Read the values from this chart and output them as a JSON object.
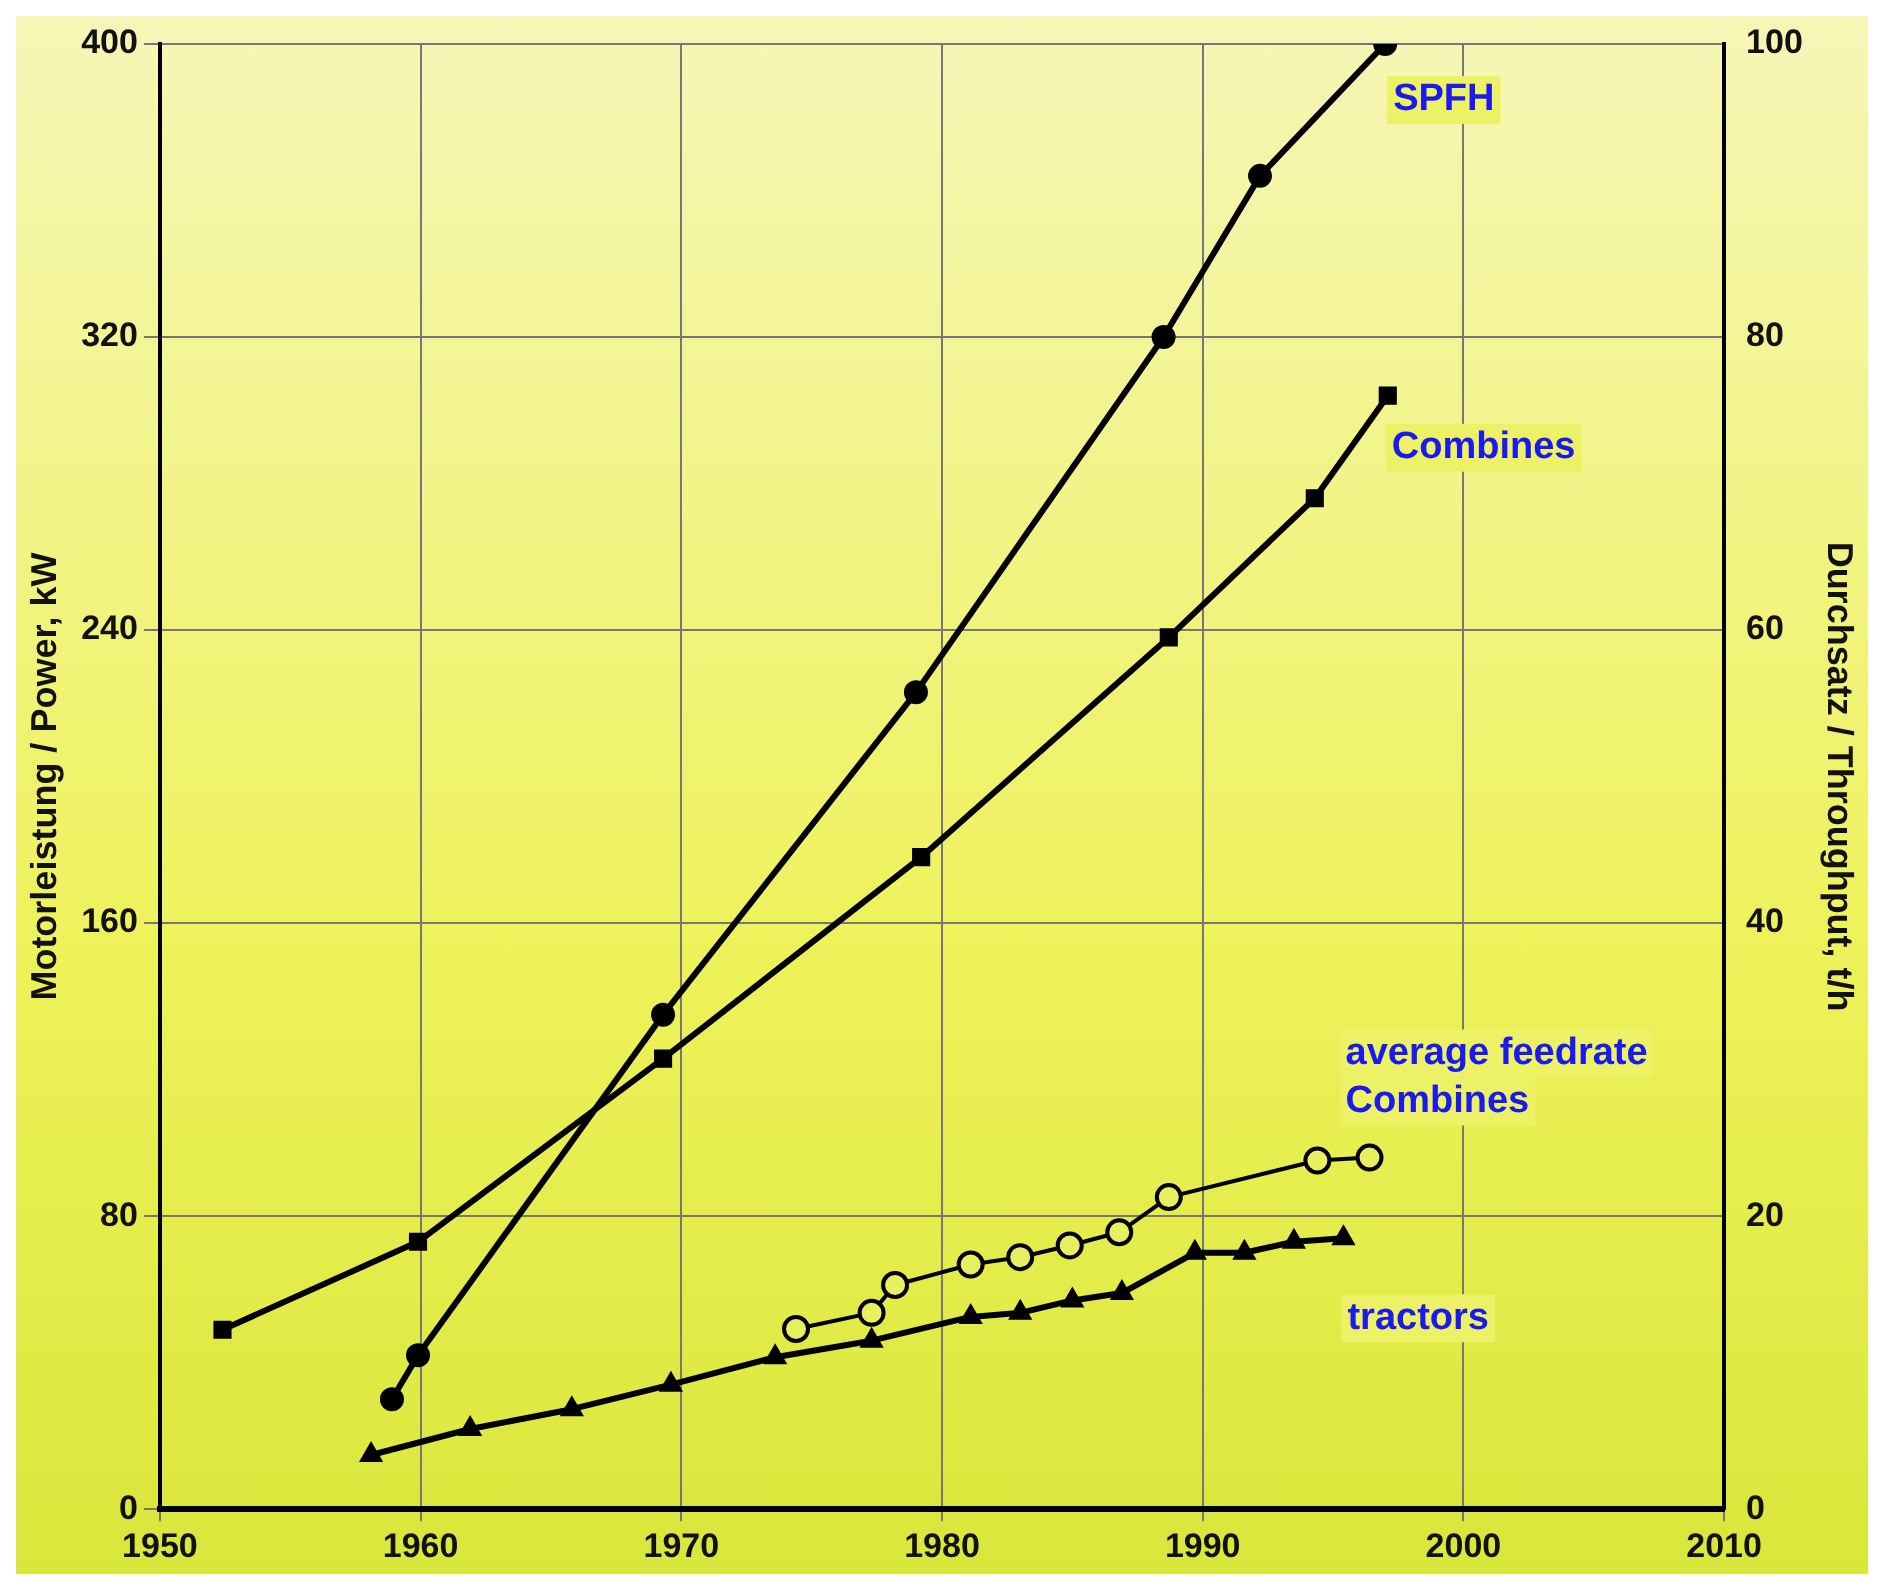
{
  "chart_data": {
    "type": "line",
    "ylabel": "Motorleistung / Power, kW",
    "y2label": "Durchsatz / Throughput, t/h",
    "xlim": [
      1950,
      2010
    ],
    "xticks": [
      1950,
      1960,
      1970,
      1980,
      1990,
      2000,
      2010
    ],
    "ylim": [
      0,
      400
    ],
    "yticks": [
      0,
      80,
      160,
      240,
      320,
      400
    ],
    "y2lim": [
      0,
      100
    ],
    "y2ticks": [
      0,
      20,
      40,
      60,
      80,
      100
    ],
    "grid": true,
    "legend": false,
    "line_style": "solid",
    "series": [
      {
        "name": "SPFH",
        "color": "#000000",
        "marker": "circle",
        "x": [
          1958.9,
          1959.9,
          1969.3,
          1979.0,
          1988.5,
          1992.2,
          1997.0
        ],
        "values": [
          30,
          42,
          135,
          223,
          320,
          364,
          400
        ]
      },
      {
        "name": "Combines",
        "color": "#000000",
        "marker": "square",
        "x": [
          1952.4,
          1959.9,
          1969.3,
          1979.2,
          1988.7,
          1994.3,
          1997.1
        ],
        "values": [
          49,
          73,
          123,
          178,
          238,
          276,
          304
        ]
      },
      {
        "name": "average feedrate Combines",
        "color": "#000000",
        "marker": "circle",
        "axis": "y2",
        "x": [
          1974.4,
          1977.3,
          1978.2,
          1981.1,
          1983.0,
          1984.9,
          1986.8,
          1988.7,
          1994.4,
          1996.4
        ],
        "values": [
          12.3,
          13.4,
          15.3,
          16.7,
          17.2,
          18.0,
          18.9,
          21.3,
          23.8,
          24.0
        ]
      },
      {
        "name": "tractors",
        "color": "#000000",
        "marker": "triangle",
        "x": [
          1958.1,
          1961.9,
          1965.8,
          1969.6,
          1973.6,
          1977.3,
          1981.1,
          1983.0,
          1985.0,
          1986.9,
          1989.7,
          1991.6,
          1993.5,
          1995.4
        ],
        "values": [
          14.8,
          21.9,
          27.3,
          34,
          41.5,
          46,
          52.5,
          53.6,
          57,
          59,
          70,
          70,
          73,
          74
        ]
      }
    ]
  }
}
